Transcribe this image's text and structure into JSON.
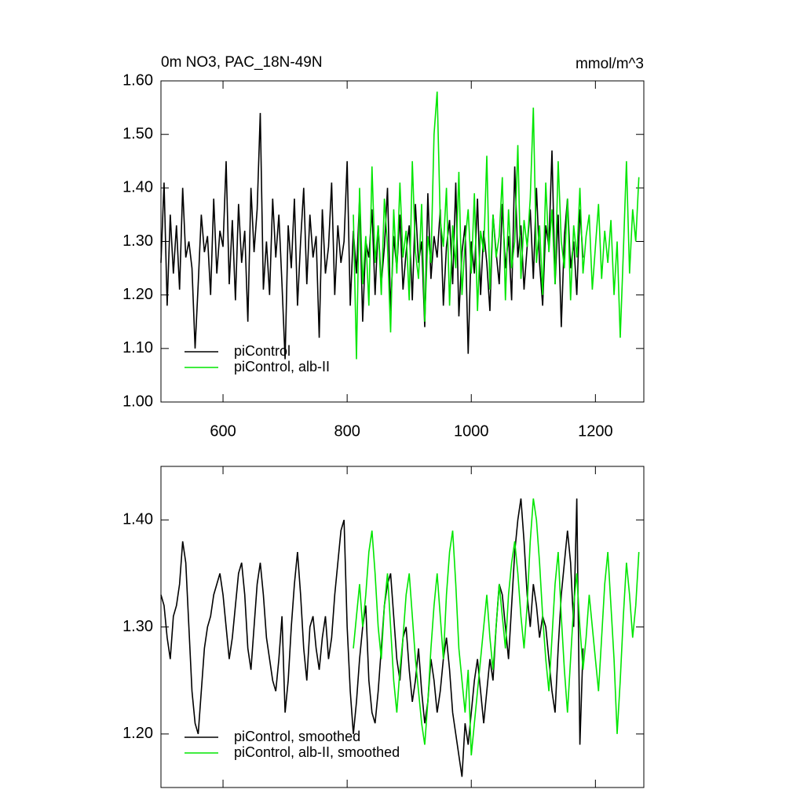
{
  "chart_data": [
    {
      "type": "line",
      "title": "0m NO3, PAC_18N-49N",
      "units": "mmol/m^3",
      "x": [
        500,
        505,
        510,
        515,
        520,
        525,
        530,
        535,
        540,
        545,
        550,
        555,
        560,
        565,
        570,
        575,
        580,
        585,
        590,
        595,
        600,
        605,
        610,
        615,
        620,
        625,
        630,
        635,
        640,
        645,
        650,
        655,
        660,
        665,
        670,
        675,
        680,
        685,
        690,
        695,
        700,
        705,
        710,
        715,
        720,
        725,
        730,
        735,
        740,
        745,
        750,
        755,
        760,
        765,
        770,
        775,
        780,
        785,
        790,
        795,
        800,
        805,
        810,
        815,
        820,
        825,
        830,
        835,
        840,
        845,
        850,
        855,
        860,
        865,
        870,
        875,
        880,
        885,
        890,
        895,
        900,
        905,
        910,
        915,
        920,
        925,
        930,
        935,
        940,
        945,
        950,
        955,
        960,
        965,
        970,
        975,
        980,
        985,
        990,
        995,
        1000,
        1005,
        1010,
        1015,
        1020,
        1025,
        1030,
        1035,
        1040,
        1045,
        1050,
        1055,
        1060,
        1065,
        1070,
        1075,
        1080,
        1085,
        1090,
        1095,
        1100,
        1105,
        1110,
        1115,
        1120,
        1125,
        1130,
        1135,
        1140,
        1145,
        1150,
        1155,
        1160,
        1165,
        1170,
        1175,
        1180,
        1185,
        1190,
        1195,
        1200,
        1205,
        1210,
        1215,
        1220,
        1225,
        1230,
        1235,
        1240,
        1245,
        1250,
        1255,
        1260,
        1265,
        1270
      ],
      "series": [
        {
          "name": "piControl",
          "color": "#000000",
          "values": [
            1.26,
            1.41,
            1.18,
            1.35,
            1.24,
            1.33,
            1.21,
            1.4,
            1.27,
            1.3,
            1.25,
            1.1,
            1.22,
            1.35,
            1.28,
            1.31,
            1.2,
            1.38,
            1.24,
            1.32,
            1.29,
            1.45,
            1.22,
            1.34,
            1.19,
            1.37,
            1.26,
            1.32,
            1.15,
            1.4,
            1.28,
            1.36,
            1.54,
            1.21,
            1.3,
            1.2,
            1.38,
            1.27,
            1.35,
            1.22,
            1.08,
            1.33,
            1.25,
            1.38,
            1.18,
            1.3,
            1.4,
            1.22,
            1.35,
            1.27,
            1.31,
            1.12,
            1.36,
            1.24,
            1.29,
            1.41,
            1.2,
            1.33,
            1.26,
            1.3,
            1.45,
            1.18,
            1.32,
            1.24,
            1.38,
            1.15,
            1.3,
            1.27,
            1.36,
            1.2,
            1.33,
            1.22,
            1.29,
            1.4,
            1.17,
            1.31,
            1.25,
            1.35,
            1.21,
            1.28,
            1.33,
            1.19,
            1.37,
            1.26,
            1.3,
            1.14,
            1.39,
            1.23,
            1.31,
            1.27,
            1.36,
            1.18,
            1.29,
            1.34,
            1.22,
            1.41,
            1.16,
            1.28,
            1.33,
            1.09,
            1.3,
            1.24,
            1.38,
            1.2,
            1.32,
            1.26,
            1.17,
            1.35,
            1.28,
            1.22,
            1.37,
            1.25,
            1.31,
            1.19,
            1.44,
            1.27,
            1.33,
            1.21,
            1.29,
            1.36,
            1.23,
            1.4,
            1.26,
            1.18,
            1.33,
            1.29,
            1.47,
            1.22,
            1.35,
            1.14,
            1.31,
            1.38,
            1.25,
            1.3,
            1.2,
            1.36,
            1.27,
            null,
            null,
            null,
            null,
            null,
            null,
            null,
            null,
            null,
            null,
            null,
            null,
            null,
            null,
            null,
            null,
            null,
            null
          ]
        },
        {
          "name": "piControl, alb-II",
          "color": "#00e600",
          "values": [
            null,
            null,
            null,
            null,
            null,
            null,
            null,
            null,
            null,
            null,
            null,
            null,
            null,
            null,
            null,
            null,
            null,
            null,
            null,
            null,
            null,
            null,
            null,
            null,
            null,
            null,
            null,
            null,
            null,
            null,
            null,
            null,
            null,
            null,
            null,
            null,
            null,
            null,
            null,
            null,
            null,
            null,
            null,
            null,
            null,
            null,
            null,
            null,
            null,
            null,
            null,
            null,
            null,
            null,
            null,
            null,
            null,
            null,
            null,
            null,
            null,
            null,
            1.35,
            1.08,
            1.4,
            1.22,
            1.31,
            1.18,
            1.44,
            1.26,
            1.33,
            1.2,
            1.38,
            1.29,
            1.13,
            1.36,
            1.24,
            1.41,
            1.27,
            1.32,
            1.19,
            1.45,
            1.28,
            1.23,
            1.37,
            1.15,
            1.31,
            1.26,
            1.5,
            1.58,
            1.34,
            1.29,
            1.4,
            1.18,
            1.33,
            1.25,
            1.43,
            1.2,
            1.3,
            1.36,
            1.24,
            1.39,
            1.17,
            1.32,
            1.28,
            1.46,
            1.21,
            1.35,
            1.27,
            1.31,
            1.42,
            1.19,
            1.36,
            1.25,
            1.3,
            1.48,
            1.23,
            1.34,
            1.29,
            1.38,
            1.55,
            1.26,
            1.33,
            1.2,
            1.41,
            1.28,
            1.36,
            1.22,
            1.45,
            1.3,
            1.25,
            1.38,
            1.19,
            1.33,
            1.27,
            1.4,
            1.24,
            1.31,
            1.35,
            1.21,
            1.29,
            1.37,
            1.23,
            1.32,
            1.26,
            1.34,
            1.2,
            1.3,
            1.12,
            1.28,
            1.45,
            1.24,
            1.36,
            1.3,
            1.42
          ]
        }
      ],
      "xlim": [
        500,
        1278
      ],
      "xticks": [
        600,
        800,
        1000,
        1200
      ],
      "ylim": [
        1.0,
        1.6
      ],
      "yticks": [
        {
          "value": 1.0,
          "label": "1.00"
        },
        {
          "value": 1.1,
          "label": "1.10"
        },
        {
          "value": 1.2,
          "label": "1.20"
        },
        {
          "value": 1.3,
          "label": "1.30"
        },
        {
          "value": 1.4,
          "label": "1.40"
        },
        {
          "value": 1.5,
          "label": "1.50"
        },
        {
          "value": 1.6,
          "label": "1.60"
        }
      ],
      "grid": false,
      "legend": "lower left",
      "xtick_labels": true
    },
    {
      "type": "line",
      "x": [
        500,
        505,
        510,
        515,
        520,
        525,
        530,
        535,
        540,
        545,
        550,
        555,
        560,
        565,
        570,
        575,
        580,
        585,
        590,
        595,
        600,
        605,
        610,
        615,
        620,
        625,
        630,
        635,
        640,
        645,
        650,
        655,
        660,
        665,
        670,
        675,
        680,
        685,
        690,
        695,
        700,
        705,
        710,
        715,
        720,
        725,
        730,
        735,
        740,
        745,
        750,
        755,
        760,
        765,
        770,
        775,
        780,
        785,
        790,
        795,
        800,
        805,
        810,
        815,
        820,
        825,
        830,
        835,
        840,
        845,
        850,
        855,
        860,
        865,
        870,
        875,
        880,
        885,
        890,
        895,
        900,
        905,
        910,
        915,
        920,
        925,
        930,
        935,
        940,
        945,
        950,
        955,
        960,
        965,
        970,
        975,
        980,
        985,
        990,
        995,
        1000,
        1005,
        1010,
        1015,
        1020,
        1025,
        1030,
        1035,
        1040,
        1045,
        1050,
        1055,
        1060,
        1065,
        1070,
        1075,
        1080,
        1085,
        1090,
        1095,
        1100,
        1105,
        1110,
        1115,
        1120,
        1125,
        1130,
        1135,
        1140,
        1145,
        1150,
        1155,
        1160,
        1165,
        1170,
        1175,
        1180,
        1185,
        1190,
        1195,
        1200,
        1205,
        1210,
        1215,
        1220,
        1225,
        1230,
        1235,
        1240,
        1245,
        1250,
        1255,
        1260,
        1265,
        1270
      ],
      "series": [
        {
          "name": "piControl, smoothed",
          "color": "#000000",
          "values": [
            1.33,
            1.32,
            1.29,
            1.27,
            1.31,
            1.32,
            1.34,
            1.38,
            1.36,
            1.3,
            1.24,
            1.21,
            1.2,
            1.24,
            1.28,
            1.3,
            1.31,
            1.33,
            1.34,
            1.35,
            1.33,
            1.3,
            1.27,
            1.29,
            1.32,
            1.35,
            1.36,
            1.33,
            1.28,
            1.26,
            1.3,
            1.34,
            1.36,
            1.33,
            1.29,
            1.27,
            1.25,
            1.24,
            1.27,
            1.31,
            1.22,
            1.25,
            1.3,
            1.34,
            1.37,
            1.33,
            1.28,
            1.25,
            1.3,
            1.31,
            1.28,
            1.26,
            1.29,
            1.31,
            1.27,
            1.29,
            1.33,
            1.36,
            1.39,
            1.4,
            1.3,
            1.24,
            1.2,
            1.23,
            1.27,
            1.3,
            1.32,
            1.25,
            1.22,
            1.21,
            1.24,
            1.28,
            1.32,
            1.34,
            1.35,
            1.31,
            1.27,
            1.25,
            1.29,
            1.3,
            1.26,
            1.23,
            1.25,
            1.28,
            1.24,
            1.21,
            1.23,
            1.27,
            1.25,
            1.22,
            1.24,
            1.27,
            1.29,
            1.26,
            1.22,
            1.2,
            1.18,
            1.16,
            1.21,
            1.19,
            1.22,
            1.25,
            1.27,
            1.24,
            1.21,
            1.24,
            1.27,
            1.25,
            1.3,
            1.34,
            1.33,
            1.3,
            1.27,
            1.32,
            1.37,
            1.4,
            1.42,
            1.38,
            1.33,
            1.3,
            1.34,
            1.32,
            1.29,
            1.31,
            1.3,
            1.27,
            1.24,
            1.22,
            1.28,
            1.33,
            1.36,
            1.39,
            1.36,
            1.3,
            1.42,
            1.19,
            1.28,
            null,
            null,
            null,
            null,
            null,
            null,
            null,
            null,
            null,
            null,
            null,
            null,
            null,
            null,
            null,
            null,
            null,
            null
          ]
        },
        {
          "name": "piControl, alb-II, smoothed",
          "color": "#00e600",
          "values": [
            null,
            null,
            null,
            null,
            null,
            null,
            null,
            null,
            null,
            null,
            null,
            null,
            null,
            null,
            null,
            null,
            null,
            null,
            null,
            null,
            null,
            null,
            null,
            null,
            null,
            null,
            null,
            null,
            null,
            null,
            null,
            null,
            null,
            null,
            null,
            null,
            null,
            null,
            null,
            null,
            null,
            null,
            null,
            null,
            null,
            null,
            null,
            null,
            null,
            null,
            null,
            null,
            null,
            null,
            null,
            null,
            null,
            null,
            null,
            null,
            null,
            null,
            1.28,
            1.31,
            1.34,
            1.3,
            1.33,
            1.37,
            1.39,
            1.35,
            1.3,
            1.27,
            1.32,
            1.35,
            1.3,
            1.25,
            1.22,
            1.26,
            1.29,
            1.33,
            1.35,
            1.31,
            1.27,
            1.24,
            1.21,
            1.19,
            1.23,
            1.28,
            1.32,
            1.35,
            1.31,
            1.27,
            1.33,
            1.37,
            1.39,
            1.34,
            1.28,
            1.25,
            1.22,
            1.26,
            1.18,
            1.21,
            1.24,
            1.27,
            1.3,
            1.33,
            1.29,
            1.26,
            1.3,
            1.34,
            1.31,
            1.28,
            1.33,
            1.36,
            1.38,
            1.35,
            1.31,
            1.28,
            1.32,
            1.38,
            1.42,
            1.4,
            1.36,
            1.31,
            1.27,
            1.24,
            1.29,
            1.34,
            1.37,
            1.31,
            1.26,
            1.22,
            1.27,
            1.32,
            1.35,
            1.3,
            1.26,
            1.29,
            1.33,
            1.3,
            1.27,
            1.24,
            1.29,
            1.34,
            1.37,
            1.32,
            1.27,
            1.2,
            1.25,
            1.31,
            1.36,
            1.33,
            1.29,
            1.32,
            1.37
          ]
        }
      ],
      "xlim": [
        500,
        1278
      ],
      "xticks": [
        600,
        800,
        1000,
        1200
      ],
      "ylim": [
        1.15,
        1.45
      ],
      "yticks": [
        {
          "value": 1.2,
          "label": "1.20"
        },
        {
          "value": 1.3,
          "label": "1.30"
        },
        {
          "value": 1.4,
          "label": "1.40"
        }
      ],
      "grid": false,
      "legend": "lower left",
      "xtick_labels": false
    }
  ]
}
